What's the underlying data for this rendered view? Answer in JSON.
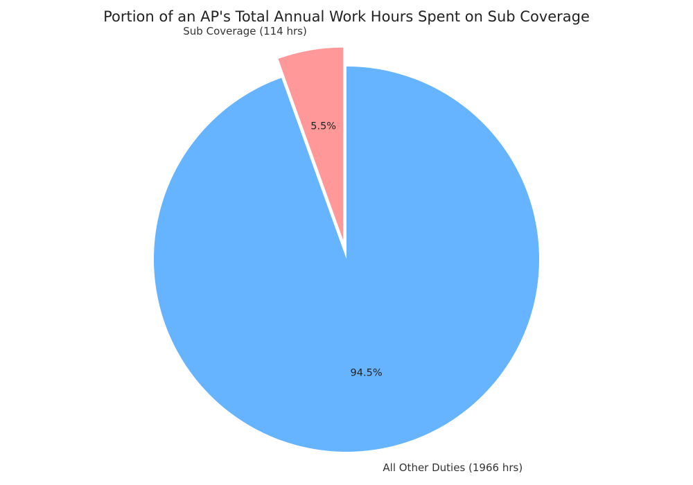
{
  "chart_data": {
    "type": "pie",
    "title": "Portion of an AP's Total Annual Work Hours Spent on Sub Coverage",
    "start_angle_deg": 90,
    "direction": "counterclockwise",
    "slices": [
      {
        "label": "Sub Coverage (114 hrs)",
        "value": 114,
        "percent_label": "5.5%",
        "color": "#ff9999",
        "exploded": true
      },
      {
        "label": "All Other Duties (1966 hrs)",
        "value": 1966,
        "percent_label": "94.5%",
        "color": "#66b3ff",
        "exploded": false
      }
    ]
  }
}
